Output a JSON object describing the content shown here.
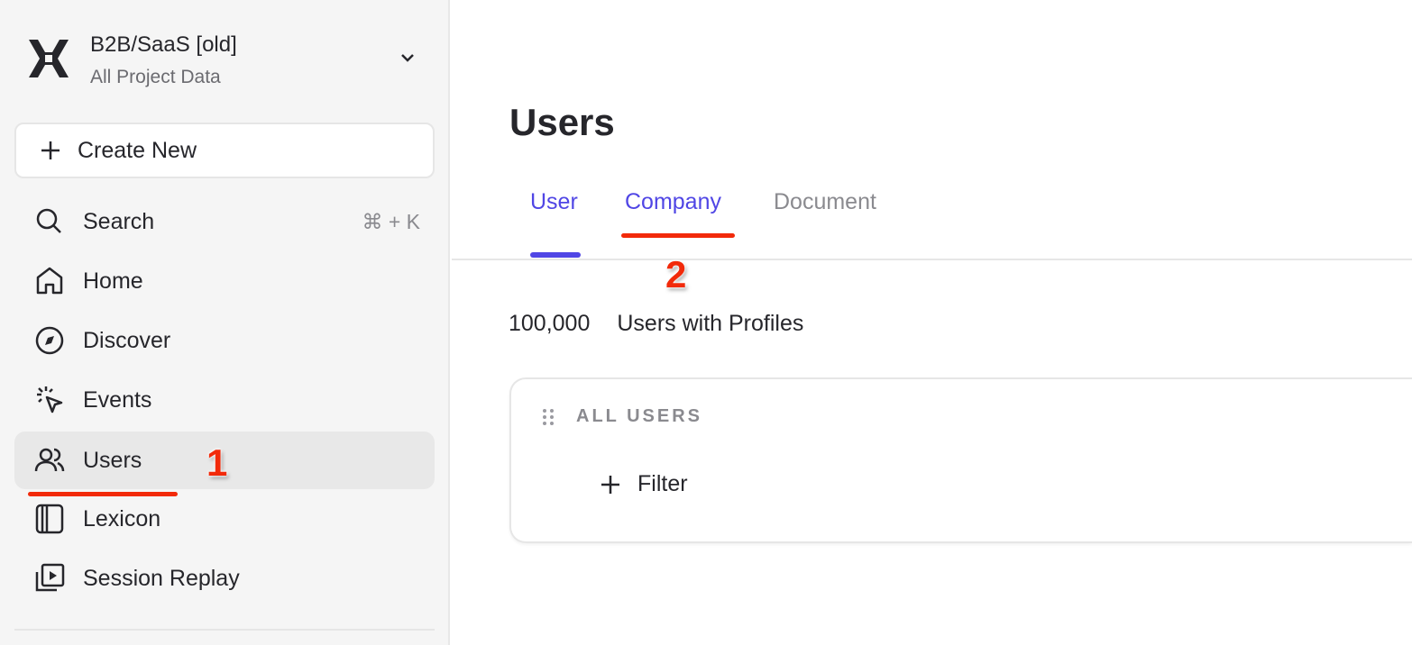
{
  "project": {
    "name": "B2B/SaaS [old]",
    "subtitle": "All Project Data"
  },
  "sidebar": {
    "create_label": "Create New",
    "search": {
      "label": "Search",
      "shortcut": "⌘ + K"
    },
    "items": [
      {
        "label": "Home",
        "icon": "home-icon"
      },
      {
        "label": "Discover",
        "icon": "compass-icon"
      },
      {
        "label": "Events",
        "icon": "cursor-click-icon"
      },
      {
        "label": "Users",
        "icon": "users-icon",
        "active": true
      },
      {
        "label": "Lexicon",
        "icon": "book-icon"
      },
      {
        "label": "Session Replay",
        "icon": "replay-icon"
      }
    ]
  },
  "main": {
    "title": "Users",
    "tabs": [
      {
        "label": "User",
        "active": true
      },
      {
        "label": "Company"
      },
      {
        "label": "Document"
      }
    ],
    "count": {
      "value": "100,000",
      "label": "Users with Profiles"
    },
    "card": {
      "label": "ALL USERS",
      "filter_label": "Filter"
    }
  },
  "annotations": {
    "step1": "1",
    "step2": "2",
    "color": "#f22a0a"
  },
  "colors": {
    "accent": "#5046e5"
  }
}
